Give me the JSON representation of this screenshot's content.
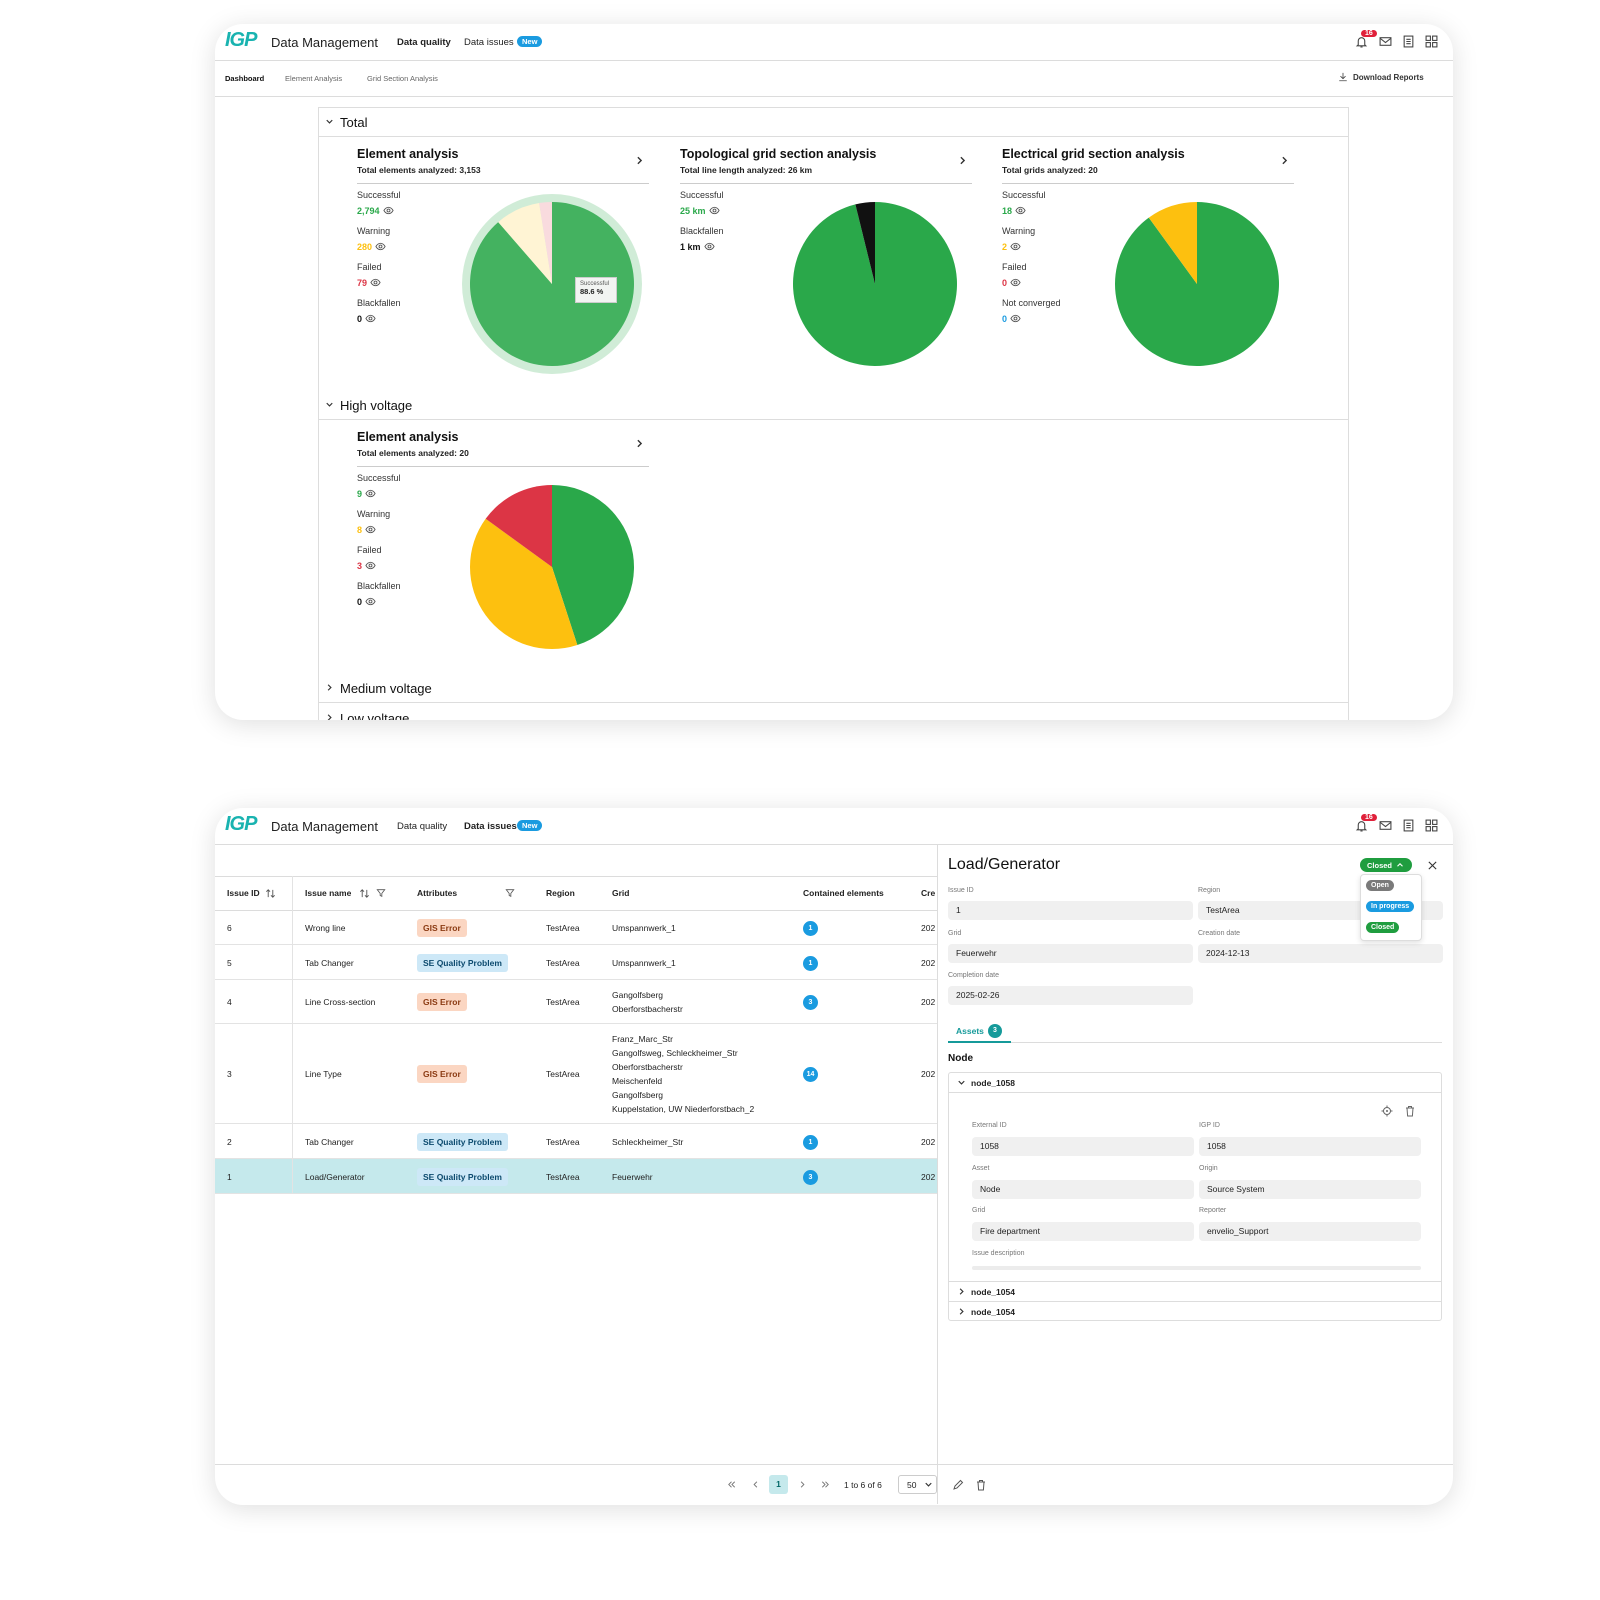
{
  "dashboard": {
    "header": {
      "logo": "IGP",
      "app": "Data Management",
      "nav": [
        "Data quality",
        "Data issues"
      ],
      "active": 0,
      "badge": "New",
      "notifications": 16
    },
    "tabs": [
      "Dashboard",
      "Element Analysis",
      "Grid Section Analysis"
    ],
    "active_tab": 0,
    "download": "Download Reports",
    "sections": [
      {
        "title": "Total",
        "expanded": true,
        "cards": [
          {
            "title": "Element analysis",
            "subtitle": "Total elements analyzed: 3,153",
            "stats": [
              {
                "label": "Successful",
                "value": 2794,
                "value_label": "2,794",
                "color": "#2aa84a"
              },
              {
                "label": "Warning",
                "value": 280,
                "color": "#fdc00f"
              },
              {
                "label": "Failed",
                "value": 79,
                "color": "#dc3545"
              },
              {
                "label": "Blackfallen",
                "value": 0,
                "color": "#111111"
              }
            ],
            "tooltip": {
              "label": "Successful",
              "value": "88.6 %"
            }
          },
          {
            "title": "Topological grid section analysis",
            "subtitle": "Total line length analyzed: 26 km",
            "stats": [
              {
                "label": "Successful",
                "value": 25,
                "value_label": "25 km",
                "color": "#2aa84a"
              },
              {
                "label": "Blackfallen",
                "value": 1,
                "value_label": "1 km",
                "color": "#111111"
              }
            ]
          },
          {
            "title": "Electrical grid section analysis",
            "subtitle": "Total grids analyzed: 20",
            "stats": [
              {
                "label": "Successful",
                "value": 18,
                "color": "#2aa84a"
              },
              {
                "label": "Warning",
                "value": 2,
                "color": "#fdc00f"
              },
              {
                "label": "Failed",
                "value": 0,
                "color": "#dc3545"
              },
              {
                "label": "Not converged",
                "value": 0,
                "color": "#1a9be0"
              }
            ]
          }
        ]
      },
      {
        "title": "High voltage",
        "expanded": true,
        "cards": [
          {
            "title": "Element analysis",
            "subtitle": "Total elements analyzed: 20",
            "stats": [
              {
                "label": "Successful",
                "value": 9,
                "color": "#2aa84a"
              },
              {
                "label": "Warning",
                "value": 8,
                "color": "#fdc00f"
              },
              {
                "label": "Failed",
                "value": 3,
                "color": "#dc3545"
              },
              {
                "label": "Blackfallen",
                "value": 0,
                "color": "#111111"
              }
            ]
          }
        ]
      },
      {
        "title": "Medium voltage",
        "expanded": false
      },
      {
        "title": "Low voltage",
        "expanded": false
      }
    ]
  },
  "issues": {
    "header": {
      "logo": "IGP",
      "app": "Data Management",
      "nav": [
        "Data quality",
        "Data issues"
      ],
      "active": 1,
      "badge": "New",
      "notifications": 16
    },
    "table": {
      "columns": [
        "Issue ID",
        "Issue name",
        "Attributes",
        "Region",
        "Grid",
        "Contained elements",
        "Cre"
      ],
      "rows": [
        {
          "id": 6,
          "name": "Wrong line",
          "attribute": {
            "text": "GIS Error",
            "bg": "#fbd6c2",
            "fg": "#8b3a12"
          },
          "region": "TestArea",
          "grid": [
            "Umspannwerk_1"
          ],
          "count": 1,
          "created": "202"
        },
        {
          "id": 5,
          "name": "Tab Changer",
          "attribute": {
            "text": "SE Quality Problem",
            "bg": "#cde8f7",
            "fg": "#0c4a6e"
          },
          "region": "TestArea",
          "grid": [
            "Umspannwerk_1"
          ],
          "count": 1,
          "created": "202"
        },
        {
          "id": 4,
          "name": "Line Cross-section",
          "attribute": {
            "text": "GIS Error",
            "bg": "#fbd6c2",
            "fg": "#8b3a12"
          },
          "region": "TestArea",
          "grid": [
            "Gangolfsberg",
            "Oberforstbacherstr"
          ],
          "count": 3,
          "created": "202"
        },
        {
          "id": 3,
          "name": "Line Type",
          "attribute": {
            "text": "GIS Error",
            "bg": "#fbd6c2",
            "fg": "#8b3a12"
          },
          "region": "TestArea",
          "grid": [
            "Franz_Marc_Str",
            "Gangolfsweg, Schleckheimer_Str",
            "Oberforstbacherstr",
            "Meischenfeld",
            "Gangolfsberg",
            "Kuppelstation, UW Niederforstbach_2"
          ],
          "count": 14,
          "created": "202"
        },
        {
          "id": 2,
          "name": "Tab Changer",
          "attribute": {
            "text": "SE Quality Problem",
            "bg": "#cde8f7",
            "fg": "#0c4a6e"
          },
          "region": "TestArea",
          "grid": [
            "Schleckheimer_Str"
          ],
          "count": 1,
          "created": "202"
        },
        {
          "id": 1,
          "name": "Load/Generator",
          "attribute": {
            "text": "SE Quality Problem",
            "bg": "#cde8f7",
            "fg": "#0c4a6e"
          },
          "region": "TestArea",
          "grid": [
            "Feuerwehr"
          ],
          "count": 3,
          "created": "202"
        }
      ],
      "selected": 5
    },
    "pagination": {
      "page": 1,
      "range": "1 to 6 of 6",
      "page_size": 50
    },
    "detail": {
      "title": "Load/Generator",
      "status": "Closed",
      "status_options": [
        {
          "text": "Open",
          "color": "#7a7a7a"
        },
        {
          "text": "In progress",
          "color": "#1a9be0"
        },
        {
          "text": "Closed",
          "color": "#1f9d3f"
        }
      ],
      "fields": [
        {
          "label": "Issue ID",
          "value": "1"
        },
        {
          "label": "Region",
          "value": "TestArea"
        },
        {
          "label": "Grid",
          "value": "Feuerwehr"
        },
        {
          "label": "Creation date",
          "value": "2024-12-13"
        },
        {
          "label": "Completion date",
          "value": "2025-02-26"
        }
      ],
      "tab": "Assets",
      "tab_count": 3,
      "group": "Node",
      "assets": [
        {
          "name": "node_1058",
          "expanded": true,
          "fields": [
            {
              "label": "External ID",
              "value": "1058"
            },
            {
              "label": "IGP ID",
              "value": "1058"
            },
            {
              "label": "Asset",
              "value": "Node"
            },
            {
              "label": "Origin",
              "value": "Source System"
            },
            {
              "label": "Grid",
              "value": "Fire department"
            },
            {
              "label": "Reporter",
              "value": "envelio_Support"
            }
          ],
          "description_label": "Issue description"
        },
        {
          "name": "node_1054",
          "expanded": false
        },
        {
          "name": "node_1054",
          "expanded": false
        }
      ]
    }
  }
}
